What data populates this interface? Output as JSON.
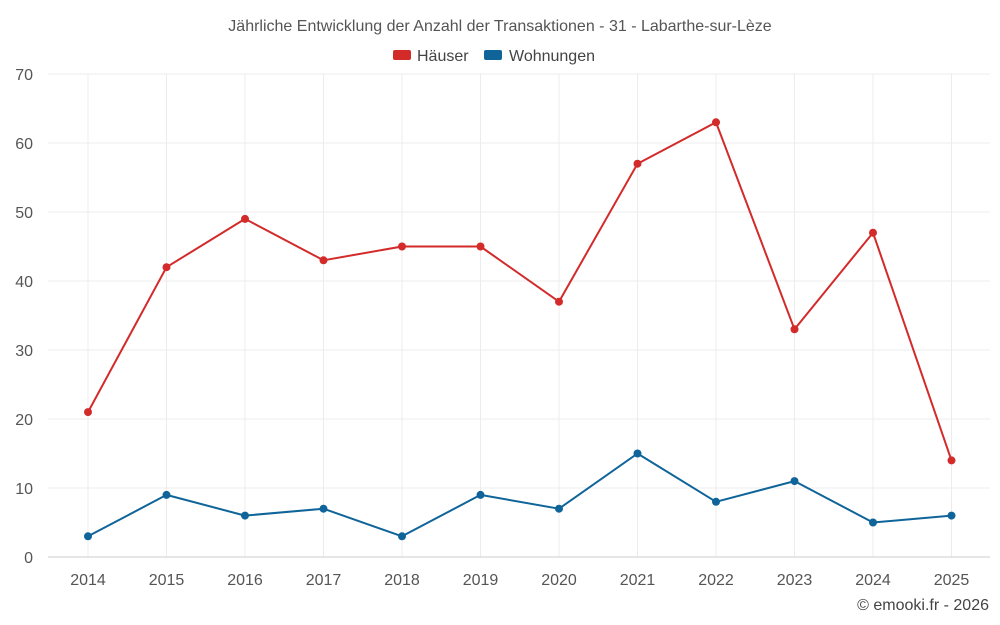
{
  "chart_data": {
    "type": "line",
    "title": "Jährliche Entwicklung der Anzahl der Transaktionen - 31 - Labarthe-sur-Lèze",
    "xlabel": "",
    "ylabel": "",
    "categories": [
      "2014",
      "2015",
      "2016",
      "2017",
      "2018",
      "2019",
      "2020",
      "2021",
      "2022",
      "2023",
      "2024",
      "2025"
    ],
    "ylim": [
      0,
      70
    ],
    "yticks": [
      0,
      10,
      20,
      30,
      40,
      50,
      60,
      70
    ],
    "grid": true,
    "legend_position": "top-center",
    "series": [
      {
        "name": "Häuser",
        "color": "#d32a2a",
        "values": [
          21,
          42,
          49,
          43,
          45,
          45,
          37,
          57,
          63,
          33,
          47,
          14
        ]
      },
      {
        "name": "Wohnungen",
        "color": "#0f6499",
        "values": [
          3,
          9,
          6,
          7,
          3,
          9,
          7,
          15,
          8,
          11,
          5,
          6
        ]
      }
    ]
  },
  "credit": "© emooki.fr - 2026"
}
